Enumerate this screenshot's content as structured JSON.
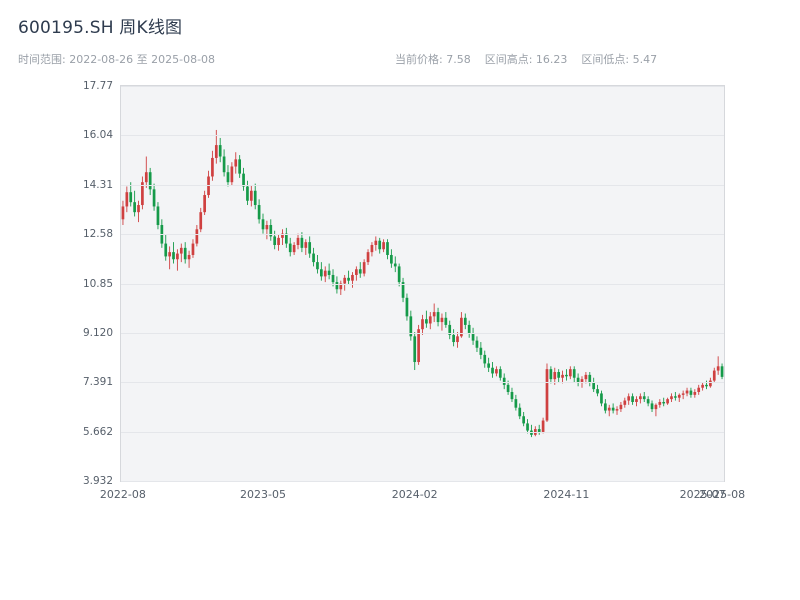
{
  "header": {
    "title": "600195.SH 周K线图",
    "time_range_label": "时间范围: 2022-08-26 至 2025-08-08",
    "current_price_label": "当前价格: 7.58",
    "range_high_label": "区间高点: 16.23",
    "range_low_label": "区间低点: 5.47"
  },
  "chart_data": {
    "type": "candlestick",
    "title": "600195.SH 周K线图",
    "symbol": "600195.SH",
    "interval": "weekly",
    "start_date": "2022-08-26",
    "end_date": "2025-08-08",
    "current_price": 7.58,
    "range_high": 16.23,
    "range_low": 5.47,
    "ylim": [
      3.932,
      17.77
    ],
    "y_ticks": [
      "17.77",
      "16.04",
      "14.31",
      "12.58",
      "10.85",
      "9.120",
      "7.391",
      "5.662",
      "3.932"
    ],
    "x_ticks": [
      {
        "label": "2022-08",
        "week": 0
      },
      {
        "label": "2023-05",
        "week": 36
      },
      {
        "label": "2024-02",
        "week": 75
      },
      {
        "label": "2024-11",
        "week": 114
      },
      {
        "label": "2025-07",
        "week": 149
      },
      {
        "label": "2025-08",
        "week": 154
      }
    ],
    "up_color": "#cf4040",
    "down_color": "#159a49",
    "grid": true,
    "legend": false,
    "candles": [
      [
        "2022-08-26",
        13.1,
        13.75,
        12.9,
        13.55
      ],
      [
        "2022-09-02",
        13.55,
        14.25,
        13.35,
        14.05
      ],
      [
        "2022-09-09",
        14.05,
        14.4,
        13.55,
        13.7
      ],
      [
        "2022-09-16",
        13.7,
        14.1,
        13.2,
        13.35
      ],
      [
        "2022-09-23",
        13.35,
        13.75,
        13.0,
        13.6
      ],
      [
        "2022-09-30",
        13.6,
        14.6,
        13.45,
        14.4
      ],
      [
        "2022-10-07",
        14.4,
        15.3,
        14.2,
        14.75
      ],
      [
        "2022-10-14",
        14.75,
        14.9,
        13.95,
        14.15
      ],
      [
        "2022-10-21",
        14.15,
        14.35,
        13.4,
        13.55
      ],
      [
        "2022-10-28",
        13.55,
        13.7,
        12.75,
        12.9
      ],
      [
        "2022-11-04",
        12.9,
        13.1,
        12.1,
        12.25
      ],
      [
        "2022-11-11",
        12.25,
        12.55,
        11.65,
        11.8
      ],
      [
        "2022-11-18",
        11.8,
        12.15,
        11.35,
        11.95
      ],
      [
        "2022-11-25",
        11.95,
        12.3,
        11.55,
        11.7
      ],
      [
        "2022-12-02",
        11.7,
        12.05,
        11.3,
        11.9
      ],
      [
        "2022-12-09",
        11.9,
        12.25,
        11.6,
        12.1
      ],
      [
        "2022-12-16",
        12.1,
        12.3,
        11.55,
        11.7
      ],
      [
        "2022-12-23",
        11.7,
        12.0,
        11.4,
        11.85
      ],
      [
        "2022-12-30",
        11.85,
        12.4,
        11.75,
        12.25
      ],
      [
        "2023-01-06",
        12.25,
        12.9,
        12.15,
        12.75
      ],
      [
        "2023-01-13",
        12.75,
        13.5,
        12.65,
        13.35
      ],
      [
        "2023-01-20",
        13.35,
        14.1,
        13.25,
        13.95
      ],
      [
        "2023-01-27",
        13.95,
        14.8,
        13.85,
        14.6
      ],
      [
        "2023-02-03",
        14.6,
        15.5,
        14.45,
        15.25
      ],
      [
        "2023-02-10",
        15.25,
        16.23,
        15.05,
        15.7
      ],
      [
        "2023-02-17",
        15.7,
        15.95,
        15.1,
        15.3
      ],
      [
        "2023-02-24",
        15.3,
        15.55,
        14.6,
        14.75
      ],
      [
        "2023-03-03",
        14.75,
        15.0,
        14.25,
        14.4
      ],
      [
        "2023-03-10",
        14.4,
        15.1,
        14.3,
        14.95
      ],
      [
        "2023-03-17",
        14.95,
        15.45,
        14.7,
        15.2
      ],
      [
        "2023-03-24",
        15.2,
        15.35,
        14.55,
        14.7
      ],
      [
        "2023-03-31",
        14.7,
        14.9,
        14.1,
        14.25
      ],
      [
        "2023-04-07",
        14.25,
        14.45,
        13.6,
        13.75
      ],
      [
        "2023-04-14",
        13.75,
        14.3,
        13.55,
        14.1
      ],
      [
        "2023-04-21",
        14.1,
        14.35,
        13.45,
        13.6
      ],
      [
        "2023-04-28",
        13.6,
        13.8,
        12.95,
        13.1
      ],
      [
        "2023-05-05",
        13.1,
        13.3,
        12.6,
        12.75
      ],
      [
        "2023-05-12",
        12.75,
        13.05,
        12.4,
        12.9
      ],
      [
        "2023-05-19",
        12.9,
        13.1,
        12.35,
        12.5
      ],
      [
        "2023-05-26",
        12.5,
        12.7,
        12.05,
        12.2
      ],
      [
        "2023-06-02",
        12.2,
        12.55,
        12.0,
        12.45
      ],
      [
        "2023-06-09",
        12.45,
        12.75,
        12.2,
        12.6
      ],
      [
        "2023-06-16",
        12.6,
        12.8,
        12.1,
        12.25
      ],
      [
        "2023-06-23",
        12.25,
        12.45,
        11.8,
        11.95
      ],
      [
        "2023-06-30",
        11.95,
        12.3,
        11.85,
        12.2
      ],
      [
        "2023-07-07",
        12.2,
        12.6,
        12.05,
        12.45
      ],
      [
        "2023-07-14",
        12.45,
        12.65,
        11.95,
        12.1
      ],
      [
        "2023-07-21",
        12.1,
        12.4,
        11.85,
        12.3
      ],
      [
        "2023-07-28",
        12.3,
        12.5,
        11.75,
        11.9
      ],
      [
        "2023-08-04",
        11.9,
        12.1,
        11.45,
        11.6
      ],
      [
        "2023-08-11",
        11.6,
        11.85,
        11.2,
        11.35
      ],
      [
        "2023-08-18",
        11.35,
        11.6,
        10.95,
        11.1
      ],
      [
        "2023-08-25",
        11.1,
        11.45,
        10.9,
        11.3
      ],
      [
        "2023-09-01",
        11.3,
        11.55,
        11.0,
        11.15
      ],
      [
        "2023-09-08",
        11.15,
        11.35,
        10.75,
        10.9
      ],
      [
        "2023-09-15",
        10.9,
        11.1,
        10.5,
        10.65
      ],
      [
        "2023-09-22",
        10.65,
        10.95,
        10.45,
        10.85
      ],
      [
        "2023-09-29",
        10.85,
        11.15,
        10.6,
        11.05
      ],
      [
        "2023-10-06",
        11.05,
        11.3,
        10.8,
        10.95
      ],
      [
        "2023-10-13",
        10.95,
        11.25,
        10.7,
        11.15
      ],
      [
        "2023-10-20",
        11.15,
        11.45,
        10.95,
        11.35
      ],
      [
        "2023-10-27",
        11.35,
        11.6,
        11.05,
        11.2
      ],
      [
        "2023-11-03",
        11.2,
        11.7,
        11.1,
        11.6
      ],
      [
        "2023-11-10",
        11.6,
        12.05,
        11.5,
        11.95
      ],
      [
        "2023-11-17",
        11.95,
        12.3,
        11.8,
        12.2
      ],
      [
        "2023-11-24",
        12.2,
        12.5,
        12.0,
        12.35
      ],
      [
        "2023-12-01",
        12.35,
        12.45,
        11.9,
        12.05
      ],
      [
        "2023-12-08",
        12.05,
        12.4,
        11.95,
        12.3
      ],
      [
        "2023-12-15",
        12.3,
        12.4,
        11.7,
        11.85
      ],
      [
        "2023-12-22",
        11.85,
        12.05,
        11.4,
        11.55
      ],
      [
        "2023-12-29",
        11.55,
        11.8,
        11.25,
        11.45
      ],
      [
        "2024-01-05",
        11.45,
        11.55,
        10.75,
        10.9
      ],
      [
        "2024-01-12",
        10.9,
        11.05,
        10.2,
        10.35
      ],
      [
        "2024-01-19",
        10.35,
        10.5,
        9.55,
        9.7
      ],
      [
        "2024-01-26",
        9.7,
        9.9,
        8.85,
        9.0
      ],
      [
        "2024-02-02",
        9.0,
        9.15,
        7.82,
        8.1
      ],
      [
        "2024-02-09",
        8.1,
        9.4,
        8.0,
        9.25
      ],
      [
        "2024-02-16",
        9.25,
        9.75,
        9.05,
        9.6
      ],
      [
        "2024-02-23",
        9.6,
        9.9,
        9.3,
        9.45
      ],
      [
        "2024-03-01",
        9.45,
        9.85,
        9.25,
        9.7
      ],
      [
        "2024-03-08",
        9.7,
        10.15,
        9.5,
        9.85
      ],
      [
        "2024-03-15",
        9.85,
        10.0,
        9.35,
        9.5
      ],
      [
        "2024-03-22",
        9.5,
        9.8,
        9.2,
        9.65
      ],
      [
        "2024-03-29",
        9.65,
        9.85,
        9.3,
        9.4
      ],
      [
        "2024-04-05",
        9.4,
        9.55,
        8.9,
        9.05
      ],
      [
        "2024-04-12",
        9.05,
        9.25,
        8.65,
        8.8
      ],
      [
        "2024-04-19",
        8.8,
        9.15,
        8.6,
        9.0
      ],
      [
        "2024-04-26",
        9.0,
        9.85,
        8.95,
        9.65
      ],
      [
        "2024-05-03",
        9.65,
        9.8,
        9.25,
        9.4
      ],
      [
        "2024-05-10",
        9.4,
        9.55,
        8.95,
        9.1
      ],
      [
        "2024-05-17",
        9.1,
        9.3,
        8.7,
        8.85
      ],
      [
        "2024-05-24",
        8.85,
        9.0,
        8.45,
        8.6
      ],
      [
        "2024-05-31",
        8.6,
        8.8,
        8.2,
        8.35
      ],
      [
        "2024-06-07",
        8.35,
        8.5,
        7.9,
        8.05
      ],
      [
        "2024-06-14",
        8.05,
        8.25,
        7.75,
        7.9
      ],
      [
        "2024-06-21",
        7.9,
        8.1,
        7.55,
        7.7
      ],
      [
        "2024-06-28",
        7.7,
        7.95,
        7.6,
        7.85
      ],
      [
        "2024-07-05",
        7.85,
        7.95,
        7.45,
        7.55
      ],
      [
        "2024-07-12",
        7.55,
        7.7,
        7.15,
        7.3
      ],
      [
        "2024-07-19",
        7.3,
        7.45,
        6.95,
        7.05
      ],
      [
        "2024-07-26",
        7.05,
        7.2,
        6.7,
        6.8
      ],
      [
        "2024-08-02",
        6.8,
        6.95,
        6.4,
        6.5
      ],
      [
        "2024-08-09",
        6.5,
        6.65,
        6.1,
        6.2
      ],
      [
        "2024-08-16",
        6.2,
        6.35,
        5.85,
        5.95
      ],
      [
        "2024-08-23",
        5.95,
        6.1,
        5.6,
        5.7
      ],
      [
        "2024-08-30",
        5.7,
        5.9,
        5.47,
        5.55
      ],
      [
        "2024-09-06",
        5.55,
        5.85,
        5.5,
        5.75
      ],
      [
        "2024-09-13",
        5.75,
        5.9,
        5.55,
        5.65
      ],
      [
        "2024-09-20",
        5.65,
        6.15,
        5.6,
        6.05
      ],
      [
        "2024-09-27",
        6.05,
        8.05,
        6.0,
        7.85
      ],
      [
        "2024-10-04",
        7.85,
        7.95,
        7.35,
        7.5
      ],
      [
        "2024-10-11",
        7.5,
        7.9,
        7.3,
        7.75
      ],
      [
        "2024-10-18",
        7.75,
        7.85,
        7.4,
        7.55
      ],
      [
        "2024-10-25",
        7.55,
        7.8,
        7.35,
        7.65
      ],
      [
        "2024-11-01",
        7.65,
        7.85,
        7.45,
        7.6
      ],
      [
        "2024-11-08",
        7.6,
        7.95,
        7.5,
        7.85
      ],
      [
        "2024-11-15",
        7.85,
        7.95,
        7.4,
        7.55
      ],
      [
        "2024-11-22",
        7.55,
        7.7,
        7.25,
        7.4
      ],
      [
        "2024-11-29",
        7.4,
        7.6,
        7.2,
        7.5
      ],
      [
        "2024-12-06",
        7.5,
        7.75,
        7.35,
        7.65
      ],
      [
        "2024-12-13",
        7.65,
        7.75,
        7.25,
        7.4
      ],
      [
        "2024-12-20",
        7.4,
        7.55,
        7.05,
        7.15
      ],
      [
        "2024-12-27",
        7.15,
        7.3,
        6.9,
        7.0
      ],
      [
        "2025-01-03",
        7.0,
        7.1,
        6.55,
        6.65
      ],
      [
        "2025-01-10",
        6.65,
        6.8,
        6.3,
        6.4
      ],
      [
        "2025-01-17",
        6.4,
        6.6,
        6.2,
        6.5
      ],
      [
        "2025-01-24",
        6.5,
        6.65,
        6.3,
        6.4
      ],
      [
        "2025-01-31",
        6.4,
        6.55,
        6.25,
        6.45
      ],
      [
        "2025-02-07",
        6.45,
        6.7,
        6.35,
        6.6
      ],
      [
        "2025-02-14",
        6.6,
        6.85,
        6.5,
        6.75
      ],
      [
        "2025-02-21",
        6.75,
        7.0,
        6.6,
        6.9
      ],
      [
        "2025-02-28",
        6.9,
        7.0,
        6.6,
        6.7
      ],
      [
        "2025-03-07",
        6.7,
        6.9,
        6.55,
        6.8
      ],
      [
        "2025-03-14",
        6.8,
        7.0,
        6.65,
        6.9
      ],
      [
        "2025-03-21",
        6.9,
        7.05,
        6.7,
        6.8
      ],
      [
        "2025-03-28",
        6.8,
        6.9,
        6.55,
        6.65
      ],
      [
        "2025-04-04",
        6.65,
        6.75,
        6.35,
        6.45
      ],
      [
        "2025-04-11",
        6.45,
        6.65,
        6.2,
        6.6
      ],
      [
        "2025-04-18",
        6.6,
        6.8,
        6.5,
        6.7
      ],
      [
        "2025-04-25",
        6.7,
        6.85,
        6.55,
        6.65
      ],
      [
        "2025-05-02",
        6.65,
        6.85,
        6.6,
        6.8
      ],
      [
        "2025-05-09",
        6.8,
        7.0,
        6.7,
        6.9
      ],
      [
        "2025-05-16",
        6.9,
        7.05,
        6.75,
        6.85
      ],
      [
        "2025-05-23",
        6.85,
        7.0,
        6.7,
        6.95
      ],
      [
        "2025-05-30",
        6.95,
        7.1,
        6.8,
        7.0
      ],
      [
        "2025-06-06",
        7.0,
        7.2,
        6.9,
        7.1
      ],
      [
        "2025-06-13",
        7.1,
        7.2,
        6.85,
        6.95
      ],
      [
        "2025-06-20",
        6.95,
        7.15,
        6.85,
        7.05
      ],
      [
        "2025-06-27",
        7.05,
        7.3,
        6.95,
        7.2
      ],
      [
        "2025-07-04",
        7.2,
        7.4,
        7.1,
        7.3
      ],
      [
        "2025-07-11",
        7.3,
        7.45,
        7.15,
        7.25
      ],
      [
        "2025-07-18",
        7.25,
        7.55,
        7.2,
        7.45
      ],
      [
        "2025-07-25",
        7.45,
        7.9,
        7.4,
        7.8
      ],
      [
        "2025-08-01",
        7.8,
        8.3,
        7.65,
        7.95
      ],
      [
        "2025-08-08",
        7.95,
        8.05,
        7.5,
        7.58
      ]
    ]
  }
}
